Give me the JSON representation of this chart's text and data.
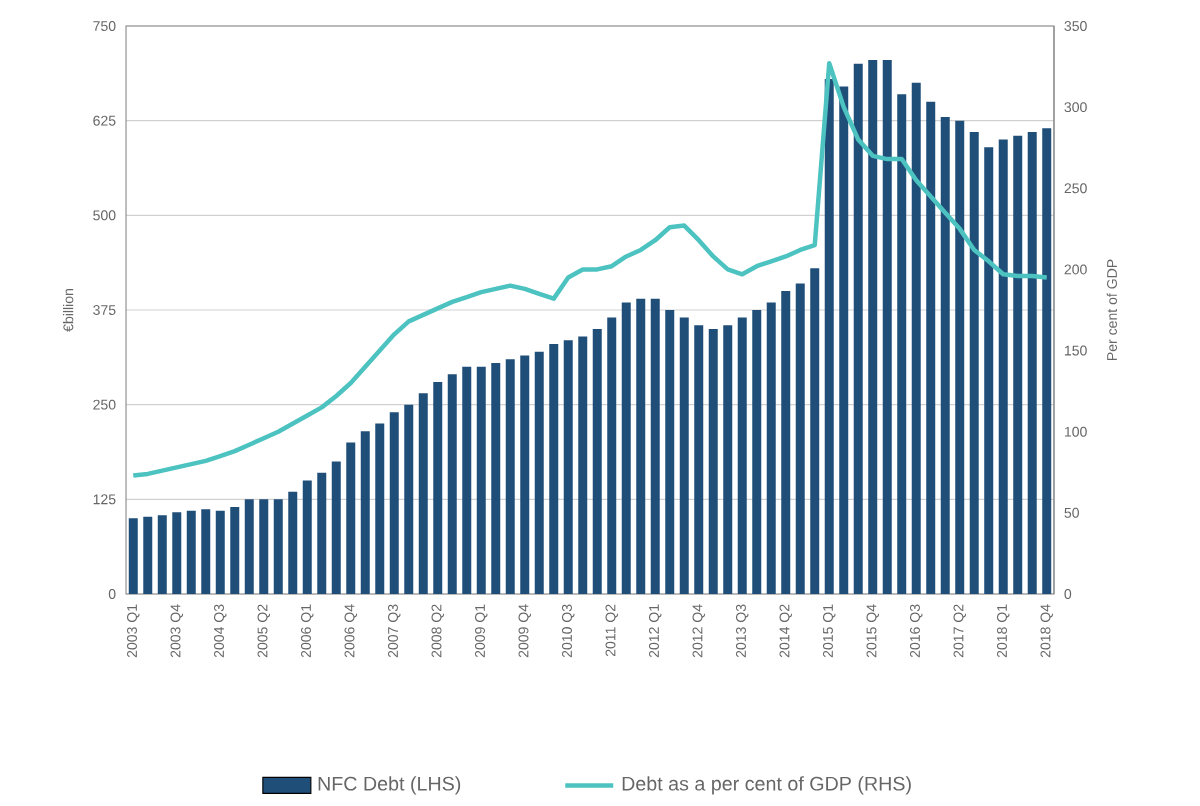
{
  "chart_data": {
    "type": "bar",
    "ylabel": "€billion",
    "y2label": "Per cent of GDP",
    "categories": [
      "2003 Q1",
      null,
      null,
      "2003 Q4",
      null,
      null,
      "2004 Q3",
      null,
      null,
      "2005 Q2",
      null,
      null,
      "2006 Q1",
      null,
      null,
      "2006 Q4",
      null,
      null,
      "2007 Q3",
      null,
      null,
      "2008 Q2",
      null,
      null,
      "2009 Q1",
      null,
      null,
      "2009 Q4",
      null,
      null,
      "2010 Q3",
      null,
      null,
      "2011 Q2",
      null,
      null,
      "2012 Q1",
      null,
      null,
      "2012 Q4",
      null,
      null,
      "2013 Q3",
      null,
      null,
      "2014 Q2",
      null,
      null,
      "2015 Q1",
      null,
      null,
      "2015 Q4",
      null,
      null,
      "2016 Q3",
      null,
      null,
      "2017 Q2",
      null,
      null,
      "2018 Q1",
      null,
      null,
      "2018 Q4"
    ],
    "series": [
      {
        "name": "NFC Debt (LHS)",
        "color": "#1f4e79",
        "values": [
          100,
          102,
          104,
          108,
          110,
          112,
          110,
          115,
          125,
          125,
          125,
          135,
          150,
          160,
          175,
          200,
          215,
          225,
          240,
          250,
          265,
          280,
          290,
          300,
          300,
          305,
          310,
          315,
          320,
          330,
          335,
          340,
          350,
          365,
          385,
          390,
          390,
          375,
          365,
          355,
          350,
          355,
          365,
          375,
          385,
          400,
          410,
          430,
          680,
          670,
          700,
          705,
          705,
          660,
          675,
          650,
          630,
          625,
          610,
          590,
          600,
          605,
          610,
          615
        ]
      },
      {
        "name": "Debt as a per cent of GDP (RHS)",
        "type": "line",
        "axis": "y2",
        "color": "#4cc3c0",
        "values": [
          73,
          74,
          76,
          78,
          80,
          82,
          85,
          88,
          92,
          96,
          100,
          105,
          110,
          115,
          122,
          130,
          140,
          150,
          160,
          168,
          172,
          176,
          180,
          183,
          186,
          188,
          190,
          188,
          185,
          182,
          195,
          200,
          200,
          202,
          208,
          212,
          218,
          226,
          227,
          218,
          208,
          200,
          197,
          202,
          205,
          208,
          212,
          215,
          327,
          300,
          280,
          270,
          268,
          268,
          255,
          245,
          235,
          225,
          212,
          205,
          197,
          196,
          196,
          195
        ]
      }
    ],
    "ylim": [
      0,
      750
    ],
    "yticks": [
      0,
      125,
      250,
      375,
      500,
      625,
      750
    ],
    "y2lim": [
      0,
      350
    ],
    "y2ticks": [
      0,
      50,
      100,
      150,
      200,
      250,
      300,
      350
    ],
    "grid": "y",
    "legend": "bottom"
  }
}
